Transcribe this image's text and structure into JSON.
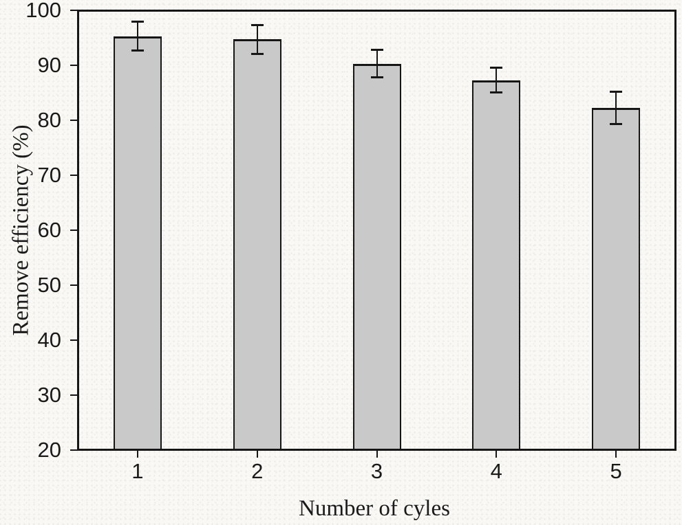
{
  "chart_data": {
    "type": "bar",
    "title": "",
    "xlabel": "Number of cyles",
    "ylabel": "Remove efficiency (%)",
    "categories": [
      "1",
      "2",
      "3",
      "4",
      "5"
    ],
    "values": [
      95.3,
      94.7,
      90.3,
      87.3,
      82.2
    ],
    "errors": [
      2.7,
      2.7,
      2.6,
      2.3,
      3.0
    ],
    "ylim": [
      20,
      100
    ],
    "yticks": [
      20,
      30,
      40,
      50,
      60,
      70,
      80,
      90,
      100
    ],
    "grid": false,
    "legend": null
  },
  "colors": {
    "bar_fill": "#c9c9c9",
    "axis": "#161616",
    "background": "#f9f8f5"
  }
}
